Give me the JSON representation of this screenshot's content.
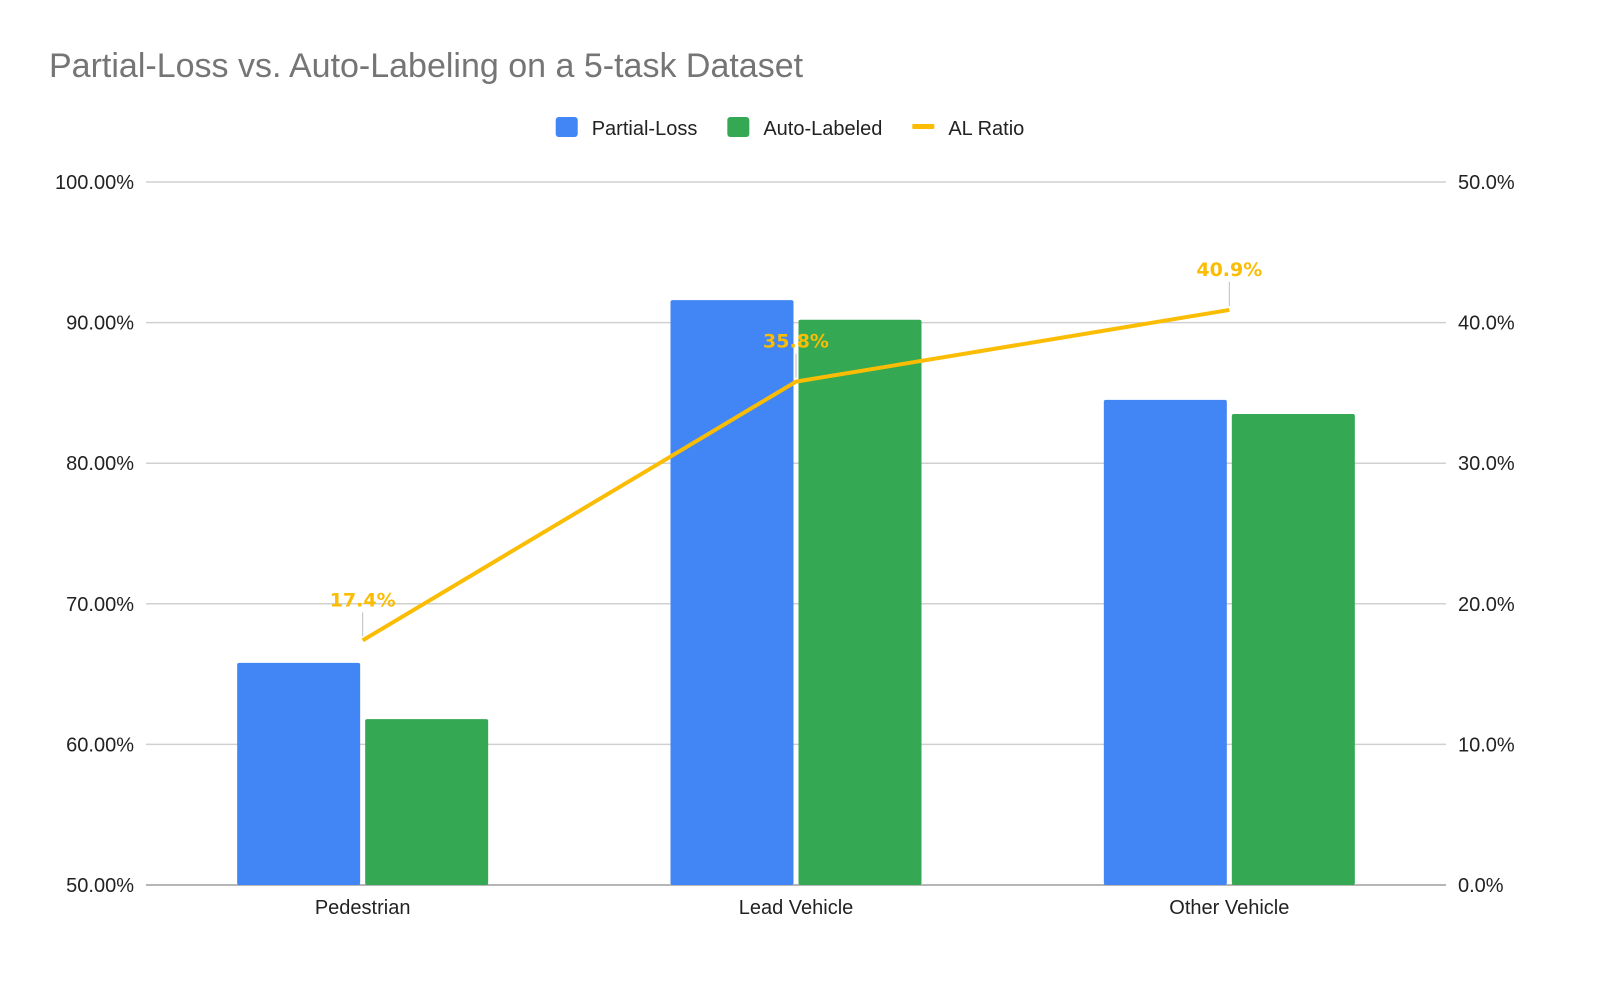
{
  "chart_data": {
    "type": "bar",
    "title": "Partial-Loss vs. Auto-Labeling on a 5-task Dataset",
    "categories": [
      "Pedestrian",
      "Lead Vehicle",
      "Other Vehicle"
    ],
    "series": [
      {
        "name": "Partial-Loss",
        "type": "bar",
        "axis": "left",
        "color": "#4285F4",
        "values": [
          65.8,
          91.6,
          84.5
        ]
      },
      {
        "name": "Auto-Labeled",
        "type": "bar",
        "axis": "left",
        "color": "#34A853",
        "values": [
          61.8,
          90.2,
          83.5
        ]
      },
      {
        "name": "AL Ratio",
        "type": "line",
        "axis": "right",
        "color": "#FBBC04",
        "values": [
          17.4,
          35.8,
          40.9
        ],
        "labels": [
          "17.4%",
          "35.8%",
          "40.9%"
        ]
      }
    ],
    "y_left": {
      "min": 50,
      "max": 100,
      "ticks": [
        "50.00%",
        "60.00%",
        "70.00%",
        "80.00%",
        "90.00%",
        "100.00%"
      ]
    },
    "y_right": {
      "min": 0,
      "max": 50,
      "ticks": [
        "0.0%",
        "10.0%",
        "20.0%",
        "30.0%",
        "40.0%",
        "50.0%"
      ]
    },
    "grid": true,
    "legend_position": "top"
  }
}
